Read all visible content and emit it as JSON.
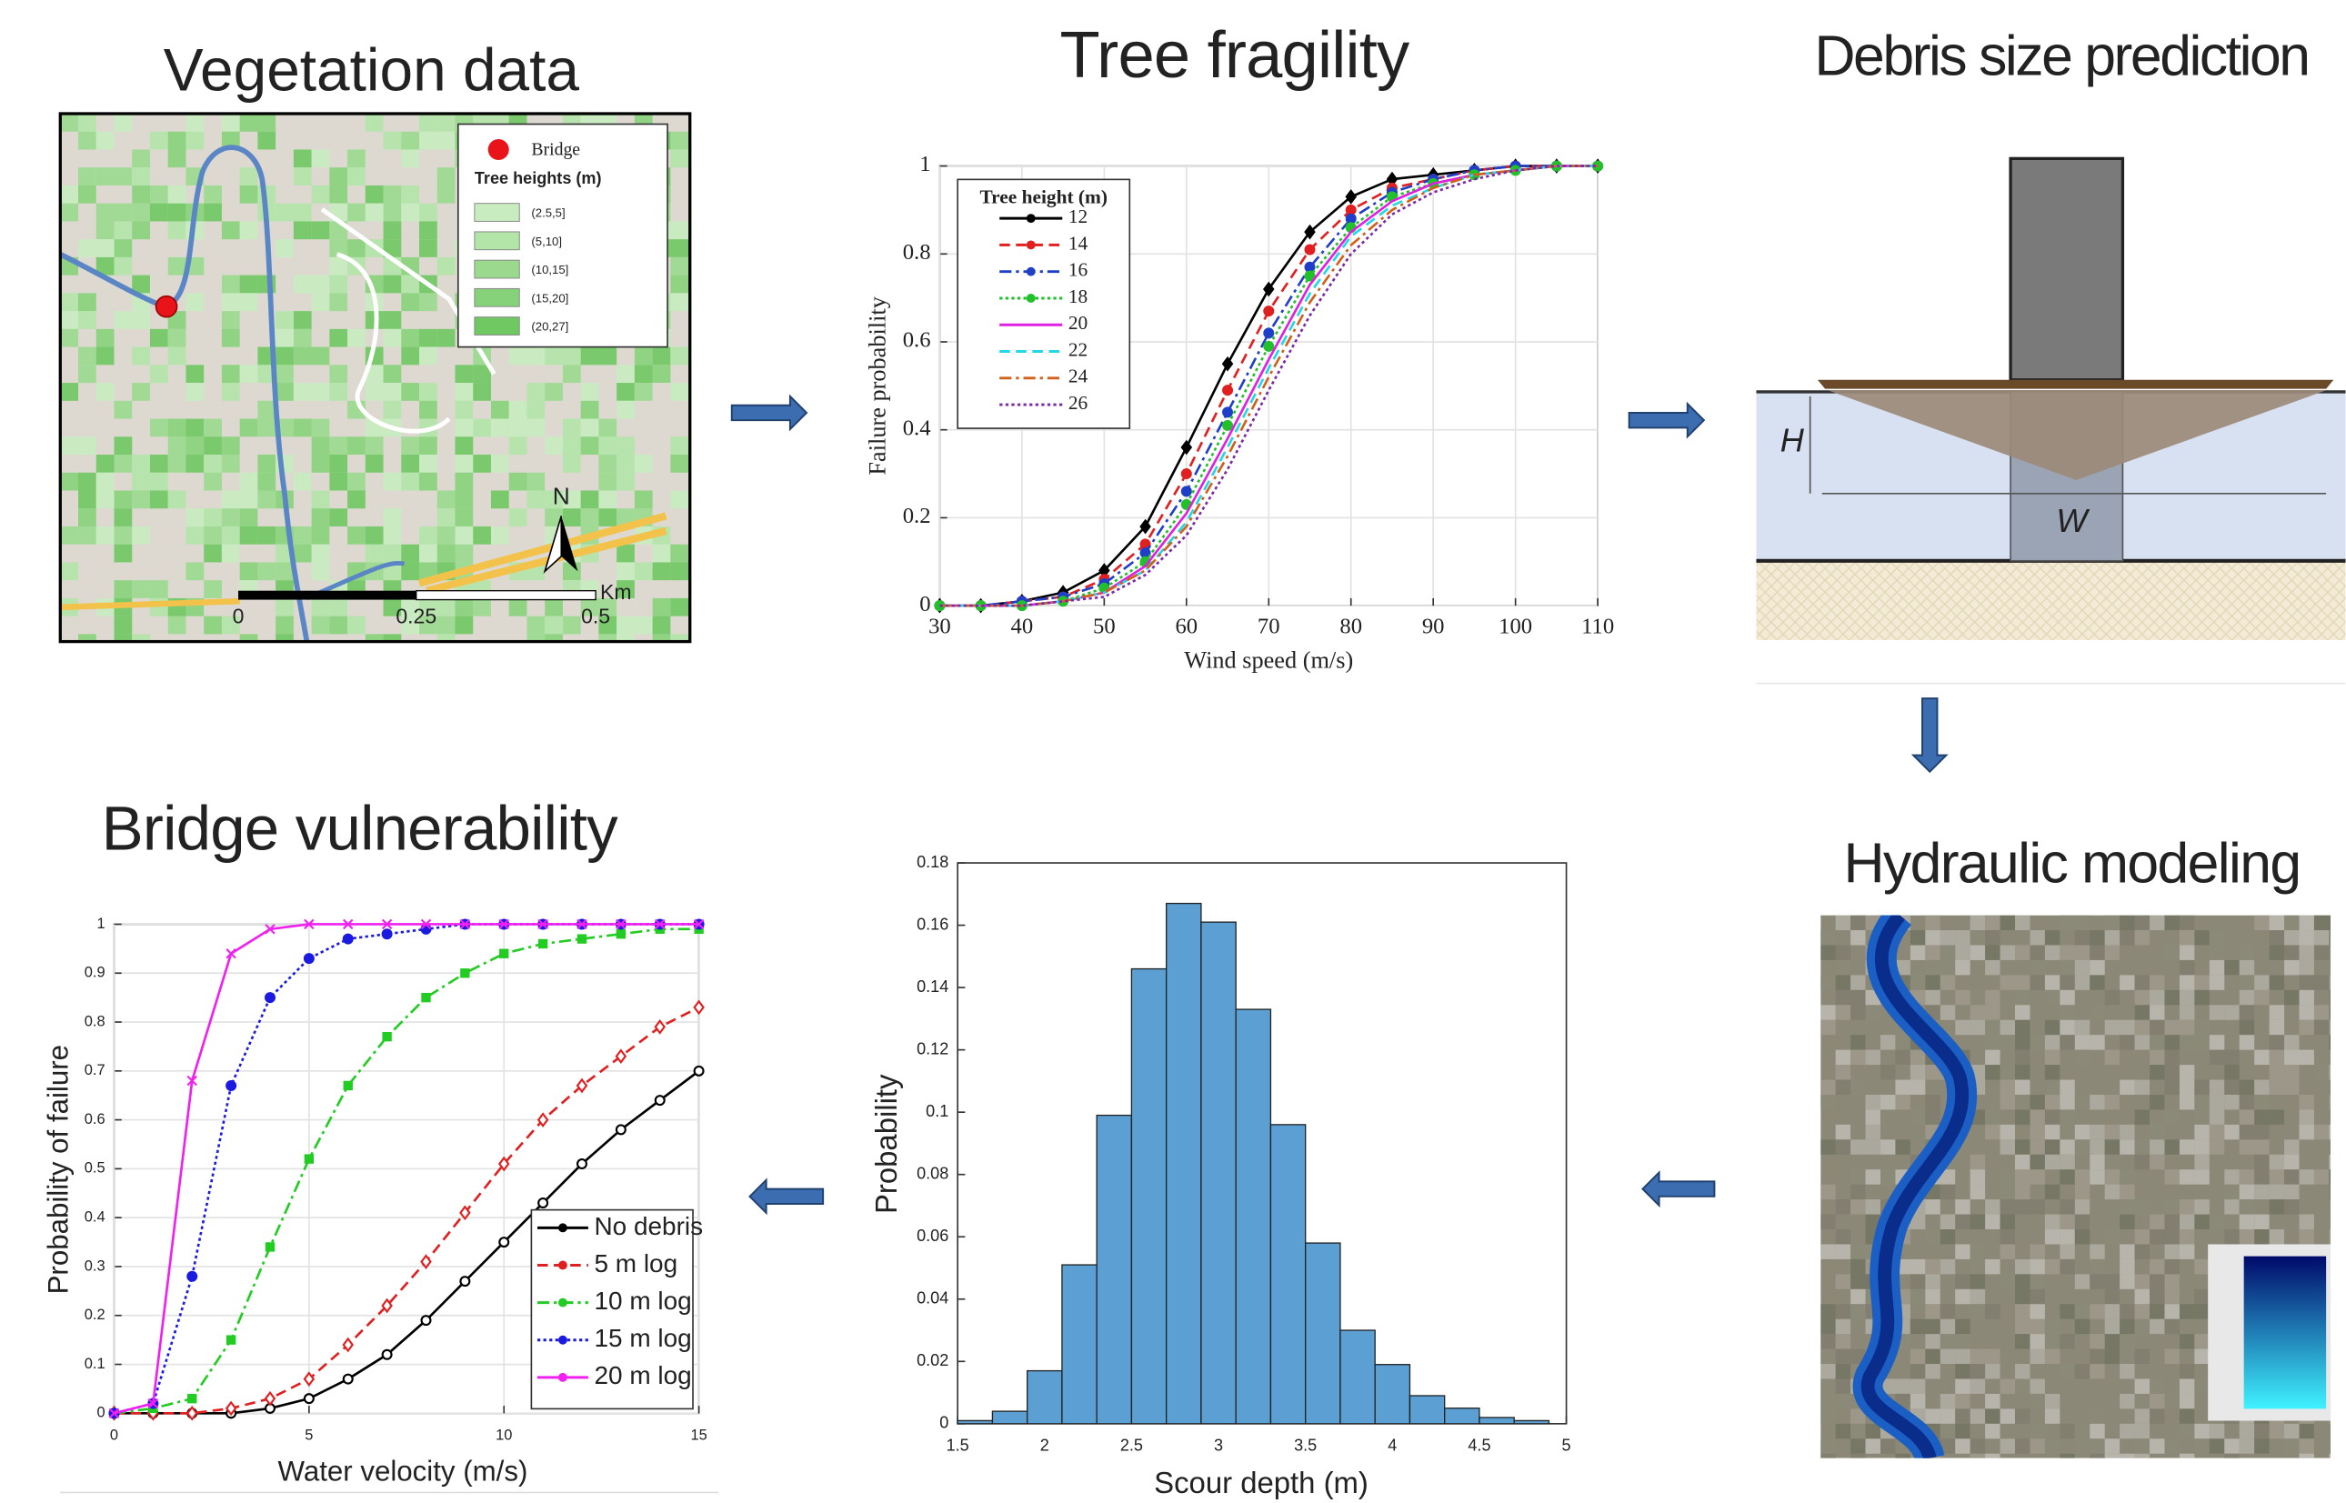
{
  "panels": {
    "vegetation": {
      "title": "Vegetation data",
      "legend_bridge": "Bridge",
      "legend_title": "Tree heights (m)",
      "classes": [
        "(2.5,5]",
        "(5,10]",
        "(10,15]",
        "(15,20]",
        "(20,27]"
      ],
      "north": "N",
      "scale_ticks": [
        0,
        0.25,
        0.5
      ],
      "scale_unit": "Km"
    },
    "debris": {
      "title": "Debris size prediction",
      "height_label": "H",
      "width_label": "W"
    },
    "hydraulic": {
      "title": "Hydraulic modeling"
    }
  },
  "chart_data": [
    {
      "type": "line",
      "title": "Tree fragility",
      "xlabel": "Wind speed (m/s)",
      "ylabel": "Failure probability",
      "legend_title": "Tree height (m)",
      "legend": "upper left",
      "grid": true,
      "xlim": [
        30,
        110
      ],
      "xticks": [
        30,
        40,
        50,
        60,
        70,
        80,
        90,
        100,
        110
      ],
      "ylim": [
        0,
        1
      ],
      "yticks": [
        0,
        0.2,
        0.4,
        0.6,
        0.8,
        1
      ],
      "x": [
        30,
        35,
        40,
        45,
        50,
        55,
        60,
        65,
        70,
        75,
        80,
        85,
        90,
        95,
        100,
        105,
        110
      ],
      "series": [
        {
          "name": "12",
          "color": "#000000",
          "dash": "solid",
          "marker": "diamond",
          "values": [
            0,
            0,
            0.01,
            0.03,
            0.08,
            0.18,
            0.36,
            0.55,
            0.72,
            0.85,
            0.93,
            0.97,
            0.98,
            0.99,
            1,
            1,
            1
          ]
        },
        {
          "name": "14",
          "color": "#e02020",
          "dash": "dashed",
          "marker": "circle",
          "values": [
            0,
            0,
            0.01,
            0.02,
            0.06,
            0.14,
            0.3,
            0.49,
            0.67,
            0.81,
            0.9,
            0.95,
            0.97,
            0.99,
            1,
            1,
            1
          ]
        },
        {
          "name": "16",
          "color": "#1f3fc8",
          "dash": "dashdot",
          "marker": "circle",
          "values": [
            0,
            0,
            0.01,
            0.02,
            0.05,
            0.12,
            0.26,
            0.44,
            0.62,
            0.77,
            0.88,
            0.94,
            0.97,
            0.99,
            1,
            1,
            1
          ]
        },
        {
          "name": "18",
          "color": "#22c02a",
          "dash": "dotted",
          "marker": "circle",
          "values": [
            0,
            0,
            0,
            0.01,
            0.04,
            0.1,
            0.23,
            0.41,
            0.59,
            0.75,
            0.86,
            0.93,
            0.96,
            0.98,
            0.99,
            1,
            1
          ]
        },
        {
          "name": "20",
          "color": "#e020e0",
          "dash": "solid",
          "values": [
            0,
            0,
            0,
            0.01,
            0.03,
            0.09,
            0.21,
            0.38,
            0.56,
            0.73,
            0.85,
            0.92,
            0.96,
            0.98,
            0.99,
            1,
            1
          ]
        },
        {
          "name": "22",
          "color": "#20d8e8",
          "dash": "dashed",
          "values": [
            0,
            0,
            0,
            0.01,
            0.03,
            0.08,
            0.19,
            0.36,
            0.54,
            0.71,
            0.84,
            0.91,
            0.95,
            0.98,
            0.99,
            1,
            1
          ]
        },
        {
          "name": "24",
          "color": "#d0601a",
          "dash": "dashdot",
          "values": [
            0,
            0,
            0,
            0.01,
            0.03,
            0.08,
            0.18,
            0.34,
            0.52,
            0.69,
            0.82,
            0.9,
            0.95,
            0.98,
            0.99,
            1,
            1
          ]
        },
        {
          "name": "26",
          "color": "#7a2aa8",
          "dash": "dotted",
          "values": [
            0,
            0,
            0,
            0.01,
            0.02,
            0.07,
            0.16,
            0.31,
            0.49,
            0.66,
            0.8,
            0.89,
            0.94,
            0.97,
            0.99,
            1,
            1
          ]
        }
      ]
    },
    {
      "type": "histogram",
      "xlabel": "Scour depth (m)",
      "ylabel": "Probability",
      "grid": false,
      "color": "#5b9fd3",
      "xlim": [
        1.5,
        5
      ],
      "xticks": [
        1.5,
        2,
        2.5,
        3,
        3.5,
        4,
        4.5,
        5
      ],
      "ylim": [
        0,
        0.18
      ],
      "yticks": [
        0,
        0.02,
        0.04,
        0.06,
        0.08,
        0.1,
        0.12,
        0.14,
        0.16,
        0.18
      ],
      "bins": [
        1.5,
        1.7,
        1.9,
        2.1,
        2.3,
        2.5,
        2.7,
        2.9,
        3.1,
        3.3,
        3.5,
        3.7,
        3.9,
        4.1,
        4.3,
        4.5,
        4.7,
        4.9
      ],
      "values": [
        0.001,
        0.004,
        0.017,
        0.051,
        0.099,
        0.146,
        0.167,
        0.161,
        0.133,
        0.096,
        0.058,
        0.03,
        0.019,
        0.009,
        0.005,
        0.002,
        0.001
      ]
    },
    {
      "type": "line",
      "title": "Bridge vulnerability",
      "xlabel": "Water velocity (m/s)",
      "ylabel": "Probability of failure",
      "legend": "lower right",
      "grid": true,
      "xlim": [
        0,
        15
      ],
      "xticks": [
        0,
        5,
        10,
        15
      ],
      "ylim": [
        0,
        1
      ],
      "yticks": [
        0,
        0.1,
        0.2,
        0.3,
        0.4,
        0.5,
        0.6,
        0.7,
        0.8,
        0.9,
        1
      ],
      "x": [
        0,
        1,
        2,
        3,
        4,
        5,
        6,
        7,
        8,
        9,
        10,
        11,
        12,
        13,
        14,
        15
      ],
      "series": [
        {
          "name": "No debris",
          "color": "#000000",
          "dash": "solid",
          "marker": "circle",
          "values": [
            0,
            0,
            0,
            0,
            0.01,
            0.03,
            0.07,
            0.12,
            0.19,
            0.27,
            0.35,
            0.43,
            0.51,
            0.58,
            0.64,
            0.7
          ]
        },
        {
          "name": "5 m log",
          "color": "#e02020",
          "dash": "dashed",
          "marker": "diamond",
          "values": [
            0,
            0,
            0,
            0.01,
            0.03,
            0.07,
            0.14,
            0.22,
            0.31,
            0.41,
            0.51,
            0.6,
            0.67,
            0.73,
            0.79,
            0.83
          ]
        },
        {
          "name": "10 m log",
          "color": "#22cc22",
          "dash": "dashdot",
          "marker": "square",
          "values": [
            0,
            0.01,
            0.03,
            0.15,
            0.34,
            0.52,
            0.67,
            0.77,
            0.85,
            0.9,
            0.94,
            0.96,
            0.97,
            0.98,
            0.99,
            0.99
          ]
        },
        {
          "name": "15 m log",
          "color": "#1a1ae0",
          "dash": "dotted",
          "marker": "circle",
          "values": [
            0,
            0.02,
            0.28,
            0.67,
            0.85,
            0.93,
            0.97,
            0.98,
            0.99,
            1,
            1,
            1,
            1,
            1,
            1,
            1
          ]
        },
        {
          "name": "20 m log",
          "color": "#f020f0",
          "dash": "solid",
          "marker": "x",
          "values": [
            0,
            0.02,
            0.68,
            0.94,
            0.99,
            1,
            1,
            1,
            1,
            1,
            1,
            1,
            1,
            1,
            1,
            1
          ]
        }
      ]
    }
  ]
}
